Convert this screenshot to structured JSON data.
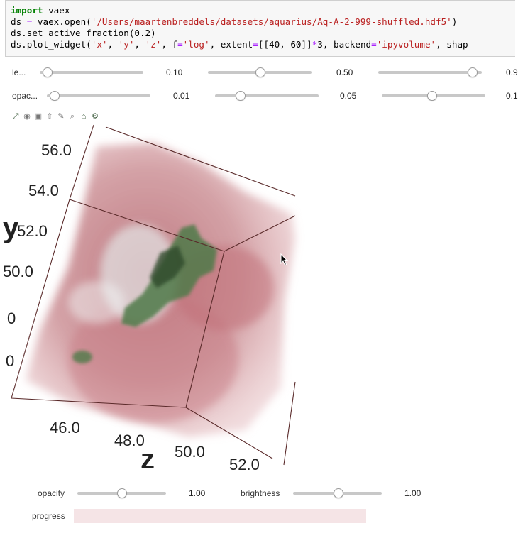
{
  "code": {
    "line1_kw": "import",
    "line1_rest": " vaex",
    "line2_a": "ds ",
    "line2_eq": "=",
    "line2_b": " vaex.open(",
    "line2_str": "'/Users/maartenbreddels/datasets/aquarius/Aq-A-2-999-shuffled.hdf5'",
    "line2_c": ")",
    "line3": "ds.set_active_fraction(0.2)",
    "line4_a": "ds.plot_widget(",
    "line4_x": "'x'",
    "line4_sep1": ", ",
    "line4_y": "'y'",
    "line4_sep2": ", ",
    "line4_z": "'z'",
    "line4_b": ", f",
    "line4_eq1": "=",
    "line4_log": "'log'",
    "line4_c": ", extent",
    "line4_eq2": "=",
    "line4_d": "[[40, 60]]",
    "line4_mul": "*",
    "line4_e": "3, backend",
    "line4_eq3": "=",
    "line4_backend": "'ipyvolume'",
    "line4_f": ", shap"
  },
  "level_row": {
    "label": "le...",
    "sliders": [
      {
        "value": "0.10",
        "fraction": 0.1
      },
      {
        "value": "0.50",
        "fraction": 0.5
      },
      {
        "value": "0.9",
        "fraction": 0.9
      }
    ]
  },
  "opacity_row": {
    "label": "opac...",
    "sliders": [
      {
        "value": "0.01",
        "fraction": 0.01
      },
      {
        "value": "0.05",
        "fraction": 0.05
      },
      {
        "value": "0.1",
        "fraction": 0.1
      }
    ]
  },
  "toolbar_icons": [
    "fullscreen-icon",
    "eye-icon",
    "image-icon",
    "share-icon",
    "edit-icon",
    "zoom-icon",
    "home-icon",
    "gear-icon"
  ],
  "plot": {
    "y_ticks": [
      "56.0",
      "54.0",
      "52.0",
      "50.0",
      "0",
      "0"
    ],
    "y_axis_label": "y",
    "z_ticks": [
      "46.0",
      "48.0",
      "50.0",
      "52.0"
    ],
    "z_axis_label": "z"
  },
  "controls": {
    "opacity_label": "opacity",
    "opacity_value": "1.00",
    "opacity_fraction": 0.5,
    "brightness_label": "brightness",
    "brightness_value": "1.00",
    "brightness_fraction": 0.5,
    "progress_label": "progress",
    "progress_fraction": 1.0
  },
  "colors": {
    "accent_green": "#4f7a4a",
    "volume_red": "#c97f86",
    "slider_track": "#c8c8c8"
  }
}
